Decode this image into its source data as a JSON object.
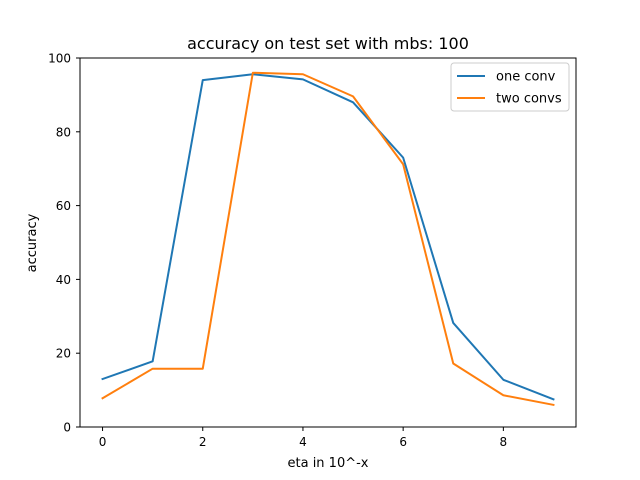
{
  "chart_data": {
    "type": "line",
    "title": "accuracy on test set with mbs: 100",
    "xlabel": "eta in 10^-x",
    "ylabel": "accuracy",
    "x": [
      0,
      1,
      2,
      3,
      4,
      5,
      6,
      7,
      8,
      9
    ],
    "xlim": [
      -0.45,
      9.45
    ],
    "ylim": [
      0,
      100
    ],
    "xticks": [
      0,
      2,
      4,
      6,
      8
    ],
    "yticks": [
      0,
      20,
      40,
      60,
      80,
      100
    ],
    "grid": false,
    "legend_position": "top-right",
    "series": [
      {
        "name": "one conv",
        "color": "#1f77b4",
        "values": [
          13.0,
          17.8,
          94.0,
          95.6,
          94.2,
          88.0,
          73.0,
          28.2,
          12.8,
          7.5
        ]
      },
      {
        "name": "two convs",
        "color": "#ff7f0e",
        "values": [
          7.8,
          15.8,
          15.8,
          96.0,
          95.6,
          89.6,
          71.2,
          17.2,
          8.6,
          6.0
        ]
      }
    ]
  }
}
